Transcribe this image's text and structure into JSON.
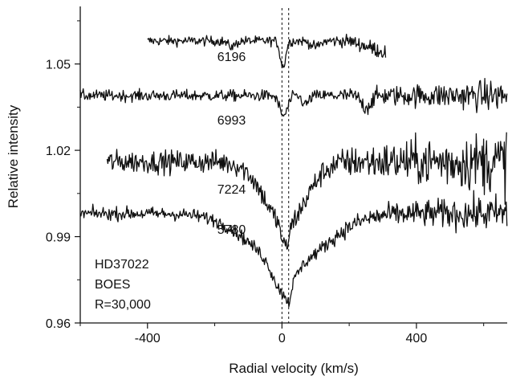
{
  "chart_data": {
    "type": "line",
    "title": "",
    "xlabel": "Radial velocity (km/s)",
    "ylabel": "Relative intensity",
    "xlim": [
      -600,
      670
    ],
    "ylim": [
      0.96,
      1.07
    ],
    "xticks": [
      -400,
      0,
      400
    ],
    "xtick_labels": [
      "-400",
      "0",
      "400"
    ],
    "yticks": [
      0.96,
      0.99,
      1.02,
      1.05
    ],
    "ytick_labels": [
      "0.96",
      "0.99",
      "1.02",
      "1.05"
    ],
    "grid": false,
    "legend": "none",
    "reference_lines": [
      0,
      20
    ],
    "annotations": [
      "HD37022",
      "BOES",
      "R=30,000"
    ],
    "series": [
      {
        "name": "6196",
        "x_range": [
          -400,
          310
        ],
        "continuum": 1.058,
        "noise": 0.0012,
        "features": [
          {
            "center": 3,
            "depth": 0.009,
            "width": 8
          },
          {
            "center": -150,
            "depth": 0.002,
            "width": 12
          },
          {
            "center": 100,
            "depth": 0.002,
            "width": 14
          }
        ],
        "end_value": 1.054
      },
      {
        "name": "6993",
        "x_range": [
          -600,
          670
        ],
        "continuum": 1.039,
        "noise": 0.0014,
        "features": [
          {
            "center": 5,
            "depth": 0.007,
            "width": 12
          },
          {
            "center": 70,
            "depth": 0.003,
            "width": 10
          },
          {
            "center": 250,
            "depth": 0.004,
            "width": 14
          }
        ]
      },
      {
        "name": "7224",
        "x_range": [
          -520,
          670
        ],
        "continuum": 1.016,
        "noise": 0.0028,
        "features": [
          {
            "center": 10,
            "depth": 0.022,
            "width": 60
          },
          {
            "center": 10,
            "depth": 0.008,
            "width": 10
          }
        ]
      },
      {
        "name": "5780",
        "x_range": [
          -600,
          670
        ],
        "continuum": 0.998,
        "noise": 0.0016,
        "features": [
          {
            "center": 20,
            "depth": 0.018,
            "width": 110
          },
          {
            "center": 5,
            "depth": 0.01,
            "width": 28
          },
          {
            "center": 20,
            "depth": 0.004,
            "width": 6
          }
        ]
      }
    ],
    "series_label_positions": [
      {
        "name": "6196",
        "x": -150,
        "y": 1.051
      },
      {
        "name": "6993",
        "x": -150,
        "y": 1.029
      },
      {
        "name": "7224",
        "x": -150,
        "y": 1.005
      },
      {
        "name": "5780",
        "x": -150,
        "y": 0.991
      }
    ]
  }
}
